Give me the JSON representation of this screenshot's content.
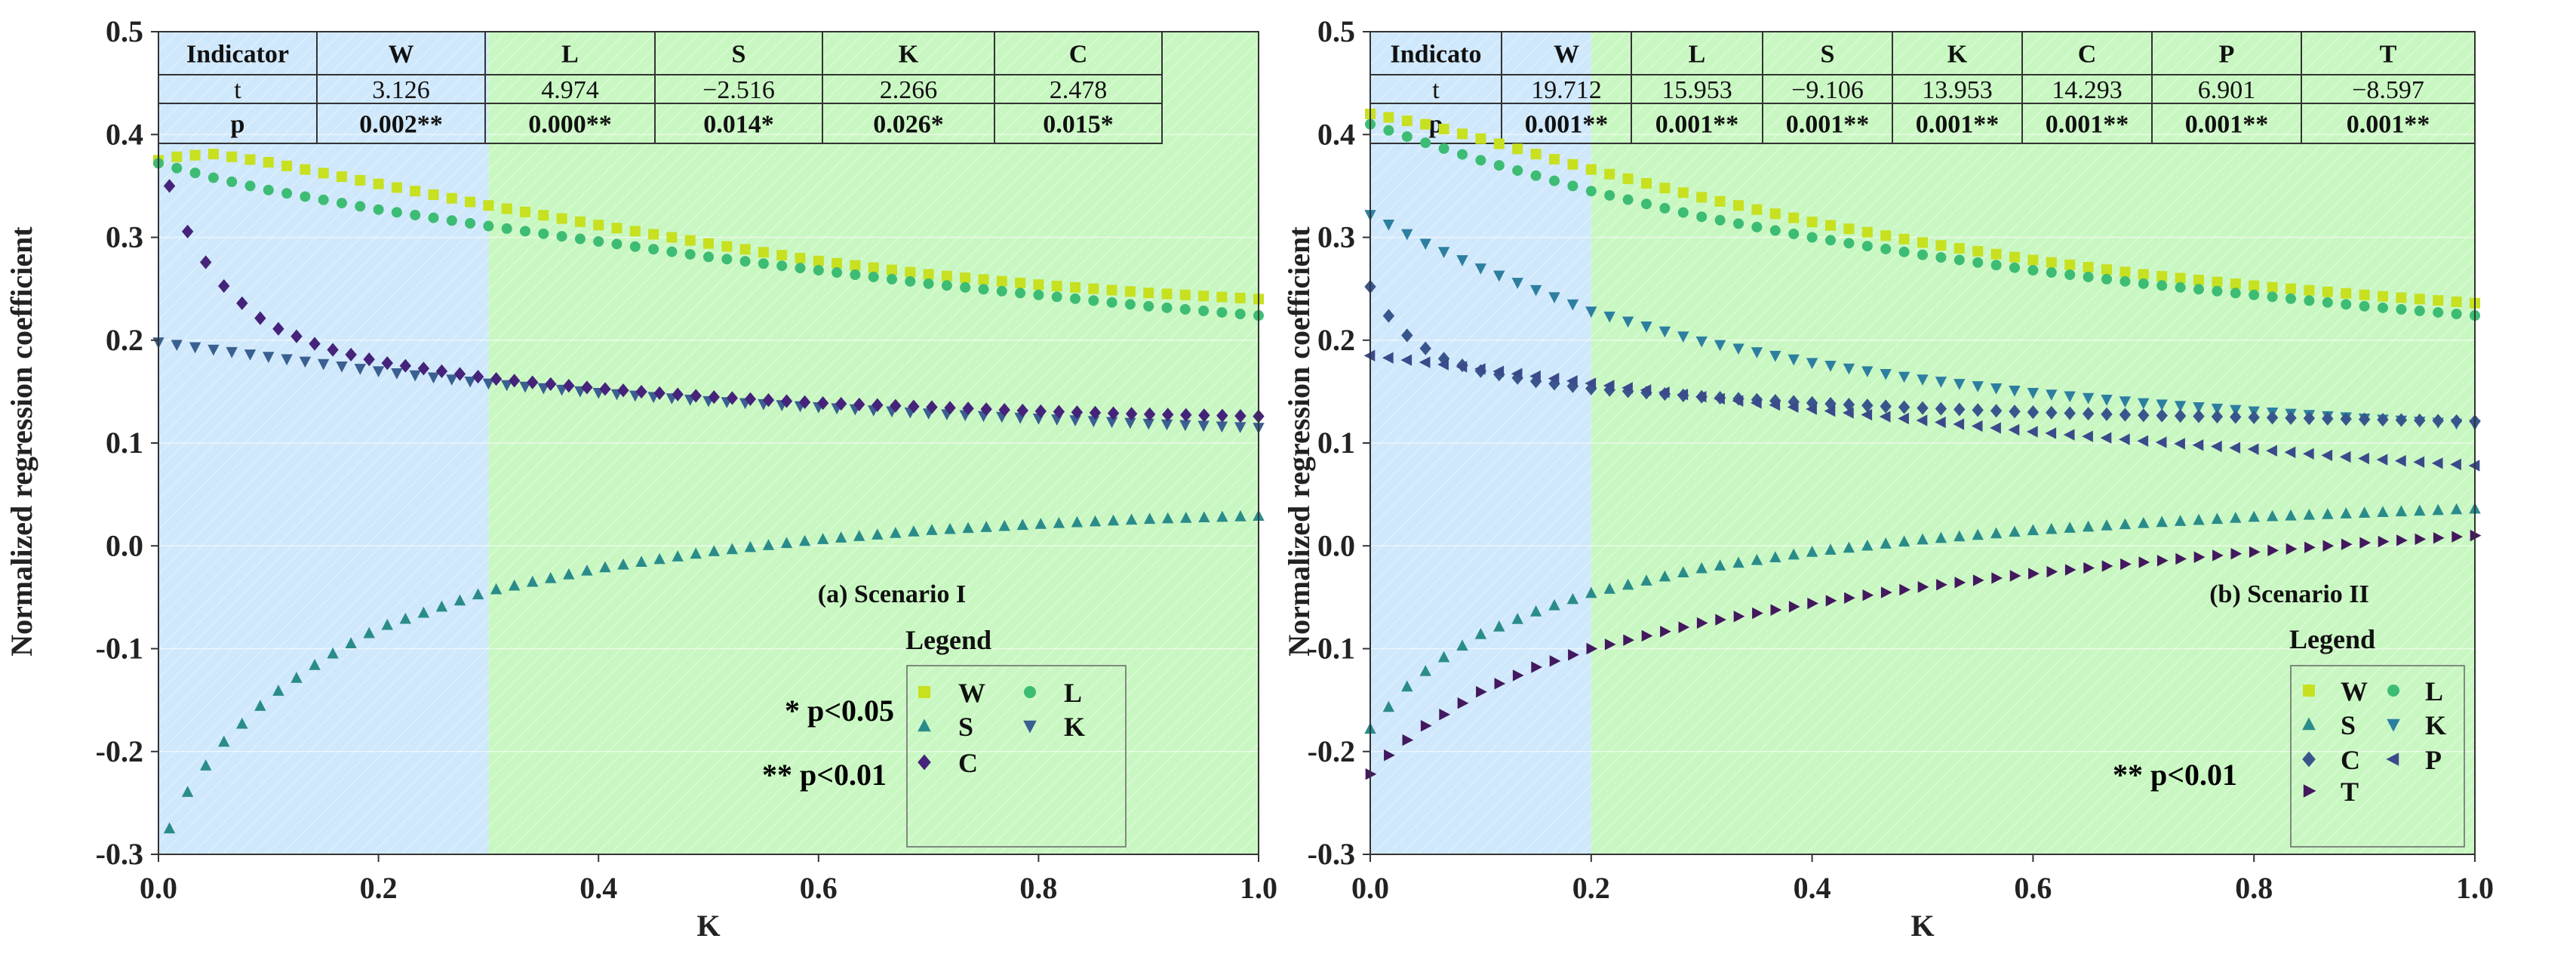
{
  "chart_data": [
    {
      "type": "scatter",
      "panel_title": "(a) Scenario I",
      "xlabel": "K",
      "ylabel": "Normalized regression coefficient",
      "xlim": [
        0,
        1.0
      ],
      "ylim": [
        -0.3,
        0.5
      ],
      "x_ticks": [
        "0.0",
        "0.2",
        "0.4",
        "0.6",
        "0.8",
        "1.0"
      ],
      "y_ticks": [
        "-0.3",
        "-0.2",
        "-0.1",
        "0.0",
        "0.1",
        "0.2",
        "0.3",
        "0.4",
        "0.5"
      ],
      "shaded_regions": [
        {
          "from": 0.0,
          "to": 0.3,
          "color": "#cfe8fb"
        },
        {
          "from": 0.3,
          "to": 1.0,
          "color": "#c9f7c2"
        }
      ],
      "table": {
        "header": [
          "Indicator",
          "W",
          "L",
          "S",
          "K",
          "C"
        ],
        "rows": [
          [
            "t",
            "3.126",
            "4.974",
            "−2.516",
            "2.266",
            "2.478"
          ],
          [
            "p",
            "0.002**",
            "0.000**",
            "0.014*",
            "0.026*",
            "0.015*"
          ]
        ]
      },
      "legend_title": "Legend",
      "legend_position": "bottom-right",
      "legend_items": [
        {
          "label": "W",
          "marker": "square"
        },
        {
          "label": "L",
          "marker": "circle"
        },
        {
          "label": "S",
          "marker": "triangle-up"
        },
        {
          "label": "K",
          "marker": "triangle-down"
        },
        {
          "label": "C",
          "marker": "diamond"
        }
      ],
      "significance_notes": [
        "*  p<0.05",
        "**  p<0.01"
      ],
      "series": [
        {
          "name": "W",
          "color": "#c7e020",
          "marker": "square",
          "points": [
            [
              0.0,
              0.375
            ],
            [
              0.02,
              0.379
            ],
            [
              0.05,
              0.381
            ],
            [
              0.1,
              0.373
            ],
            [
              0.2,
              0.352
            ],
            [
              0.3,
              0.331
            ],
            [
              0.4,
              0.312
            ],
            [
              0.5,
              0.294
            ],
            [
              0.6,
              0.277
            ],
            [
              0.7,
              0.264
            ],
            [
              0.8,
              0.254
            ],
            [
              0.9,
              0.246
            ],
            [
              1.0,
              0.24
            ]
          ]
        },
        {
          "name": "L",
          "color": "#3dbc74",
          "marker": "circle",
          "points": [
            [
              0.0,
              0.372
            ],
            [
              0.05,
              0.358
            ],
            [
              0.1,
              0.346
            ],
            [
              0.2,
              0.327
            ],
            [
              0.3,
              0.311
            ],
            [
              0.4,
              0.296
            ],
            [
              0.5,
              0.281
            ],
            [
              0.6,
              0.268
            ],
            [
              0.7,
              0.255
            ],
            [
              0.8,
              0.244
            ],
            [
              0.9,
              0.233
            ],
            [
              1.0,
              0.224
            ]
          ]
        },
        {
          "name": "S",
          "color": "#2a8c8a",
          "marker": "triangle-up",
          "points": [
            [
              0.01,
              -0.275
            ],
            [
              0.03,
              -0.232
            ],
            [
              0.06,
              -0.19
            ],
            [
              0.1,
              -0.148
            ],
            [
              0.15,
              -0.11
            ],
            [
              0.2,
              -0.08
            ],
            [
              0.3,
              -0.044
            ],
            [
              0.4,
              -0.022
            ],
            [
              0.5,
              -0.006
            ],
            [
              0.6,
              0.006
            ],
            [
              0.7,
              0.015
            ],
            [
              0.8,
              0.021
            ],
            [
              0.9,
              0.026
            ],
            [
              1.0,
              0.029
            ]
          ]
        },
        {
          "name": "K",
          "color": "#3a5f91",
          "marker": "triangle-down",
          "points": [
            [
              0.0,
              0.198
            ],
            [
              0.1,
              0.184
            ],
            [
              0.2,
              0.17
            ],
            [
              0.3,
              0.158
            ],
            [
              0.4,
              0.149
            ],
            [
              0.5,
              0.141
            ],
            [
              0.6,
              0.135
            ],
            [
              0.7,
              0.129
            ],
            [
              0.8,
              0.124
            ],
            [
              0.9,
              0.119
            ],
            [
              1.0,
              0.115
            ]
          ]
        },
        {
          "name": "C",
          "color": "#46237a",
          "marker": "diamond",
          "points": [
            [
              0.01,
              0.35
            ],
            [
              0.02,
              0.318
            ],
            [
              0.04,
              0.28
            ],
            [
              0.06,
              0.252
            ],
            [
              0.08,
              0.232
            ],
            [
              0.1,
              0.215
            ],
            [
              0.15,
              0.193
            ],
            [
              0.2,
              0.179
            ],
            [
              0.3,
              0.163
            ],
            [
              0.4,
              0.153
            ],
            [
              0.5,
              0.145
            ],
            [
              0.6,
              0.139
            ],
            [
              0.7,
              0.135
            ],
            [
              0.8,
              0.131
            ],
            [
              0.9,
              0.128
            ],
            [
              1.0,
              0.126
            ]
          ]
        }
      ]
    },
    {
      "type": "scatter",
      "panel_title": "(b) Scenario II",
      "xlabel": "K",
      "ylabel": "Normalized regression coefficient",
      "xlim": [
        0,
        1.0
      ],
      "ylim": [
        -0.3,
        0.5
      ],
      "x_ticks": [
        "0.0",
        "0.2",
        "0.4",
        "0.6",
        "0.8",
        "1.0"
      ],
      "y_ticks": [
        "-0.3",
        "-0.2",
        "-0.1",
        "0.0",
        "0.1",
        "0.2",
        "0.3",
        "0.4",
        "0.5"
      ],
      "shaded_regions": [
        {
          "from": 0.0,
          "to": 0.2,
          "color": "#cfe8fb"
        },
        {
          "from": 0.2,
          "to": 1.0,
          "color": "#c9f7c2"
        }
      ],
      "table": {
        "header": [
          "Indicato",
          "W",
          "L",
          "S",
          "K",
          "C",
          "P",
          "T"
        ],
        "rows": [
          [
            "t",
            "19.712",
            "15.953",
            "−9.106",
            "13.953",
            "14.293",
            "6.901",
            "−8.597"
          ],
          [
            "p",
            "0.001**",
            "0.001**",
            "0.001**",
            "0.001**",
            "0.001**",
            "0.001**",
            "0.001**"
          ]
        ]
      },
      "legend_title": "Legend",
      "legend_position": "bottom-right",
      "legend_items": [
        {
          "label": "W",
          "marker": "square"
        },
        {
          "label": "L",
          "marker": "circle"
        },
        {
          "label": "S",
          "marker": "triangle-up"
        },
        {
          "label": "K",
          "marker": "triangle-down"
        },
        {
          "label": "C",
          "marker": "diamond"
        },
        {
          "label": "P",
          "marker": "triangle-left"
        },
        {
          "label": "T",
          "marker": "triangle-right"
        }
      ],
      "significance_notes": [
        "**  p<0.01"
      ],
      "series": [
        {
          "name": "W",
          "color": "#c7e020",
          "marker": "square",
          "points": [
            [
              0.0,
              0.42
            ],
            [
              0.05,
              0.41
            ],
            [
              0.1,
              0.396
            ],
            [
              0.2,
              0.366
            ],
            [
              0.3,
              0.339
            ],
            [
              0.4,
              0.315
            ],
            [
              0.5,
              0.295
            ],
            [
              0.6,
              0.278
            ],
            [
              0.7,
              0.264
            ],
            [
              0.8,
              0.253
            ],
            [
              0.9,
              0.244
            ],
            [
              1.0,
              0.236
            ]
          ]
        },
        {
          "name": "L",
          "color": "#3dbc74",
          "marker": "circle",
          "points": [
            [
              0.0,
              0.41
            ],
            [
              0.05,
              0.392
            ],
            [
              0.1,
              0.375
            ],
            [
              0.2,
              0.345
            ],
            [
              0.3,
              0.32
            ],
            [
              0.4,
              0.3
            ],
            [
              0.5,
              0.283
            ],
            [
              0.6,
              0.268
            ],
            [
              0.7,
              0.255
            ],
            [
              0.8,
              0.244
            ],
            [
              0.9,
              0.233
            ],
            [
              1.0,
              0.224
            ]
          ]
        },
        {
          "name": "S",
          "color": "#2a8c8a",
          "marker": "triangle-up",
          "points": [
            [
              0.0,
              -0.178
            ],
            [
              0.03,
              -0.14
            ],
            [
              0.06,
              -0.113
            ],
            [
              0.1,
              -0.086
            ],
            [
              0.15,
              -0.064
            ],
            [
              0.2,
              -0.046
            ],
            [
              0.3,
              -0.022
            ],
            [
              0.4,
              -0.006
            ],
            [
              0.5,
              0.006
            ],
            [
              0.6,
              0.015
            ],
            [
              0.7,
              0.022
            ],
            [
              0.8,
              0.028
            ],
            [
              0.9,
              0.032
            ],
            [
              1.0,
              0.036
            ]
          ]
        },
        {
          "name": "K",
          "color": "#2d7fa0",
          "marker": "triangle-down",
          "points": [
            [
              0.0,
              0.322
            ],
            [
              0.05,
              0.294
            ],
            [
              0.1,
              0.27
            ],
            [
              0.2,
              0.228
            ],
            [
              0.3,
              0.199
            ],
            [
              0.4,
              0.178
            ],
            [
              0.5,
              0.162
            ],
            [
              0.6,
              0.149
            ],
            [
              0.7,
              0.139
            ],
            [
              0.8,
              0.131
            ],
            [
              0.9,
              0.124
            ],
            [
              1.0,
              0.118
            ]
          ]
        },
        {
          "name": "C",
          "color": "#39568c",
          "marker": "diamond",
          "points": [
            [
              0.0,
              0.252
            ],
            [
              0.02,
              0.218
            ],
            [
              0.04,
              0.198
            ],
            [
              0.07,
              0.18
            ],
            [
              0.1,
              0.17
            ],
            [
              0.15,
              0.16
            ],
            [
              0.2,
              0.153
            ],
            [
              0.3,
              0.145
            ],
            [
              0.4,
              0.139
            ],
            [
              0.5,
              0.134
            ],
            [
              0.6,
              0.13
            ],
            [
              0.7,
              0.127
            ],
            [
              0.8,
              0.125
            ],
            [
              0.9,
              0.123
            ],
            [
              1.0,
              0.121
            ]
          ]
        },
        {
          "name": "P",
          "color": "#3b4a8a",
          "marker": "triangle-left",
          "points": [
            [
              0.0,
              0.185
            ],
            [
              0.1,
              0.172
            ],
            [
              0.2,
              0.158
            ],
            [
              0.3,
              0.145
            ],
            [
              0.4,
              0.133
            ],
            [
              0.5,
              0.122
            ],
            [
              0.6,
              0.111
            ],
            [
              0.7,
              0.102
            ],
            [
              0.8,
              0.094
            ],
            [
              0.9,
              0.085
            ],
            [
              1.0,
              0.078
            ]
          ]
        },
        {
          "name": "T",
          "color": "#43185e",
          "marker": "triangle-right",
          "points": [
            [
              0.0,
              -0.222
            ],
            [
              0.02,
              -0.2
            ],
            [
              0.05,
              -0.175
            ],
            [
              0.1,
              -0.142
            ],
            [
              0.15,
              -0.118
            ],
            [
              0.2,
              -0.1
            ],
            [
              0.3,
              -0.075
            ],
            [
              0.4,
              -0.056
            ],
            [
              0.5,
              -0.04
            ],
            [
              0.6,
              -0.027
            ],
            [
              0.7,
              -0.016
            ],
            [
              0.8,
              -0.006
            ],
            [
              0.9,
              0.003
            ],
            [
              1.0,
              0.01
            ]
          ]
        }
      ]
    }
  ]
}
